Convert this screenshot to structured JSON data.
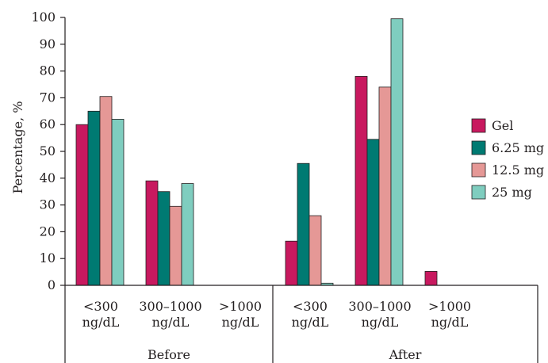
{
  "chart_data": {
    "type": "bar",
    "ylabel": "Percentage, %",
    "xlabel": "",
    "title": "",
    "ylim": [
      0,
      100
    ],
    "yticks": [
      0,
      10,
      20,
      30,
      40,
      50,
      60,
      70,
      80,
      90,
      100
    ],
    "grid": false,
    "legend_position": "right",
    "groups": [
      {
        "name": "Before",
        "categories": [
          "<300\nng/dL",
          "300–1000\nng/dL",
          ">1000\nng/dL"
        ]
      },
      {
        "name": "After",
        "categories": [
          "<300\nng/dL",
          "300–1000\nng/dL",
          ">1000\nng/dL"
        ]
      }
    ],
    "categories": [
      "Before <300 ng/dL",
      "Before 300–1000 ng/dL",
      "Before >1000 ng/dL",
      "After <300 ng/dL",
      "After 300–1000 ng/dL",
      "After >1000 ng/dL"
    ],
    "series": [
      {
        "name": "Gel",
        "color": "#c8195f",
        "values": [
          60,
          39,
          0,
          16.5,
          78,
          5.2
        ]
      },
      {
        "name": "6.25 mg",
        "color": "#007a72",
        "values": [
          65,
          35,
          0,
          45.5,
          54.5,
          0
        ]
      },
      {
        "name": "12.5 mg",
        "color": "#e59896",
        "values": [
          70.5,
          29.5,
          0,
          26,
          74,
          0
        ]
      },
      {
        "name": "25 mg",
        "color": "#7fcdbf",
        "values": [
          62,
          38,
          0,
          0.8,
          99.5,
          0
        ]
      }
    ]
  }
}
